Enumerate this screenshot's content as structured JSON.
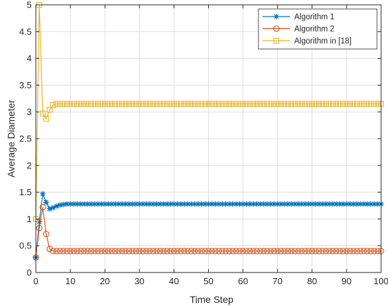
{
  "chart_data": {
    "type": "line",
    "title": "",
    "xlabel": "Time Step",
    "ylabel": "Average Diameter",
    "xlim": [
      0,
      100
    ],
    "ylim": [
      0,
      5
    ],
    "xticks": [
      "0",
      "10",
      "20",
      "30",
      "40",
      "50",
      "60",
      "70",
      "80",
      "90",
      "100"
    ],
    "yticks": [
      "0",
      "0.5",
      "1",
      "1.5",
      "2",
      "2.5",
      "3",
      "3.5",
      "4",
      "4.5",
      "5"
    ],
    "grid": true,
    "legend_position": "top-right",
    "series": [
      {
        "name": "Algorithm 1",
        "color": "#0072BD",
        "marker": "asterisk",
        "head": [
          [
            0,
            0.28
          ],
          [
            1,
            0.95
          ],
          [
            2,
            1.47
          ],
          [
            3,
            1.31
          ],
          [
            4,
            1.19
          ],
          [
            5,
            1.21
          ],
          [
            6,
            1.24
          ],
          [
            7,
            1.26
          ],
          [
            8,
            1.27
          ]
        ],
        "steady_value": 1.28,
        "x_end": 100
      },
      {
        "name": "Algorithm 2",
        "color": "#D95319",
        "marker": "circle",
        "head": [
          [
            0,
            0.28
          ],
          [
            1,
            0.83
          ],
          [
            2,
            1.22
          ],
          [
            3,
            0.72
          ],
          [
            4,
            0.44
          ],
          [
            5,
            0.4
          ]
        ],
        "steady_value": 0.4,
        "x_end": 100
      },
      {
        "name": "Algorithm in [18]",
        "color": "#EDB120",
        "marker": "square",
        "head": [
          [
            0,
            1.0
          ],
          [
            1,
            5.0
          ],
          [
            2,
            2.97
          ],
          [
            3,
            2.87
          ],
          [
            4,
            3.04
          ],
          [
            5,
            3.13
          ],
          [
            6,
            3.15
          ]
        ],
        "steady_value": 3.15,
        "x_end": 100
      }
    ]
  }
}
